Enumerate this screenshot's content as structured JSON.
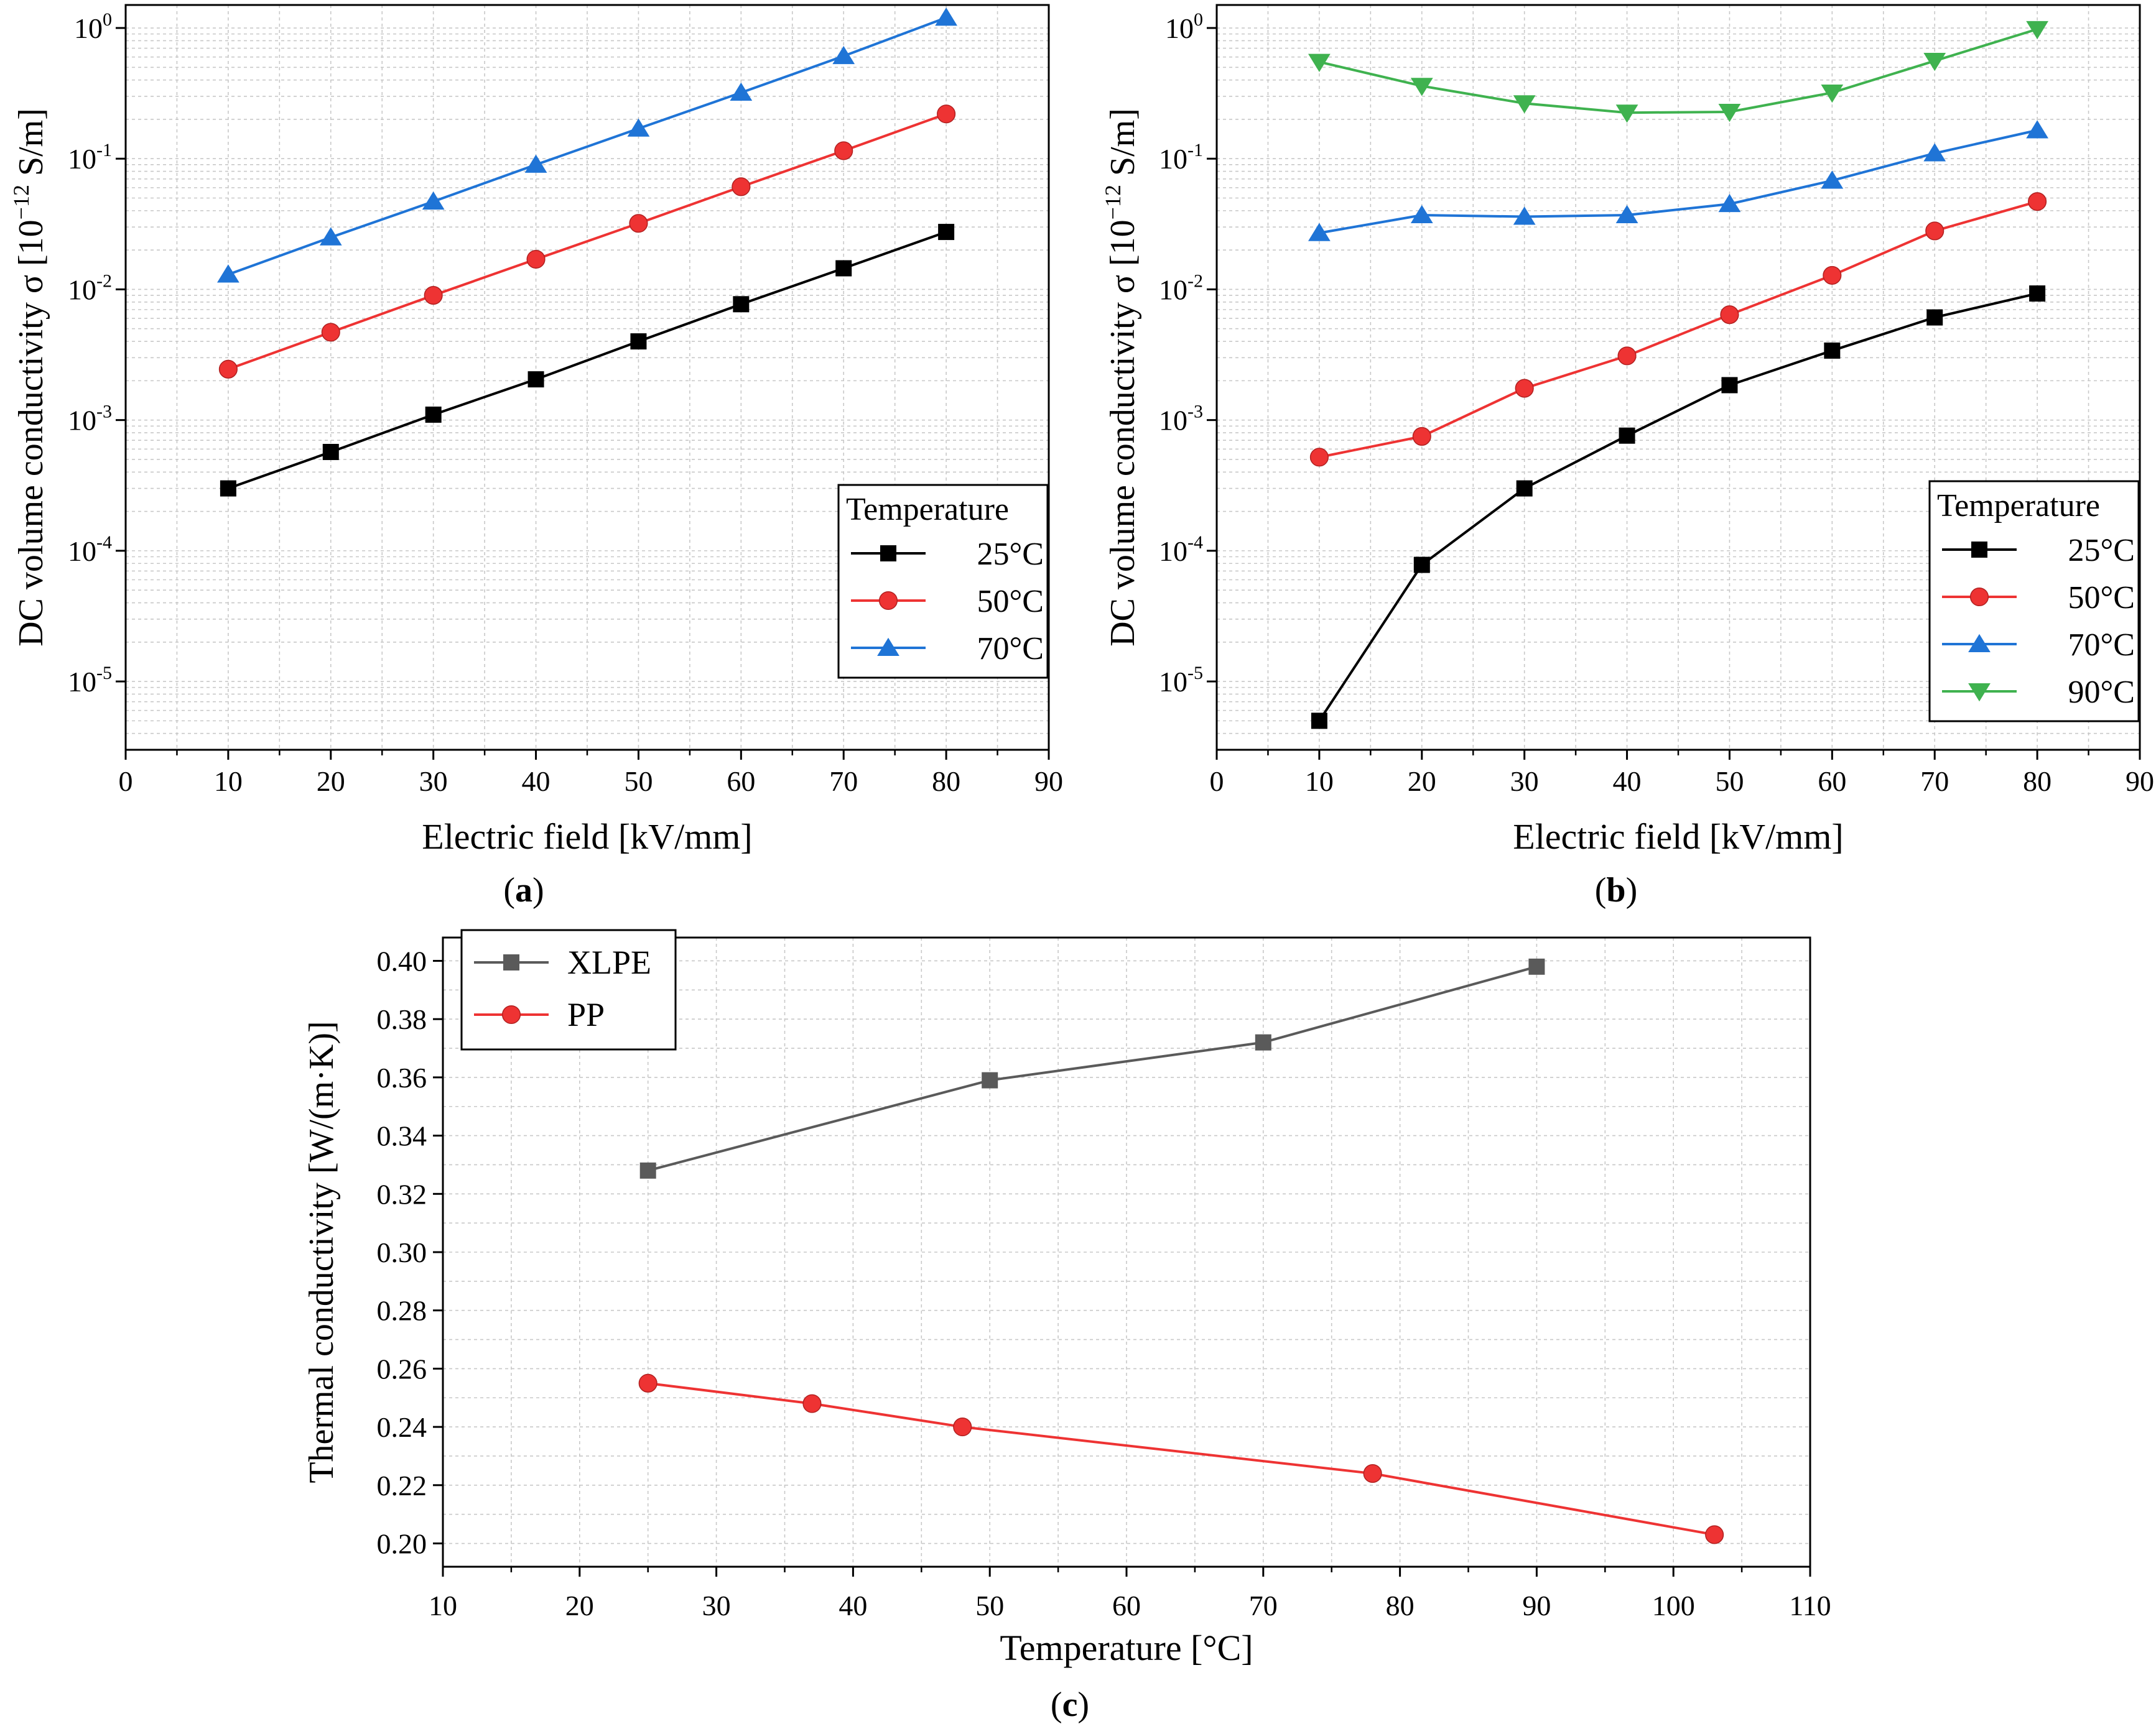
{
  "colors": {
    "black": "#000000",
    "red": "#ee3333",
    "blue": "#1f74d6",
    "green": "#3fb24f",
    "grey": "#5a5a5a",
    "grid": "#c8c8c8"
  },
  "chart_data": [
    {
      "id": "a",
      "type": "line",
      "panel_label": "a",
      "yscale": "log",
      "xlabel": "Electric field [kV/mm]",
      "ylabel": "DC volume conductivity σ [10",
      "ylabel_exp": "−12",
      "ylabel_unit": " S/m]",
      "xlim": [
        0,
        90
      ],
      "ylim": [
        3e-06,
        1.5
      ],
      "xticks": [
        "0",
        "10",
        "20",
        "30",
        "40",
        "50",
        "60",
        "70",
        "80",
        "90"
      ],
      "ytick_base": "10",
      "yticks": [
        "-5",
        "-4",
        "-3",
        "-2",
        "-1",
        "0"
      ],
      "legend_title": "Temperature",
      "legend_position": "lower-right",
      "series": [
        {
          "name": "25°C",
          "marker": "square",
          "color": "#000000",
          "x": [
            10,
            20,
            30,
            40,
            50,
            60,
            70,
            80
          ],
          "y": [
            0.0003,
            0.00057,
            0.0011,
            0.00205,
            0.004,
            0.0077,
            0.0145,
            0.0275
          ]
        },
        {
          "name": "50°C",
          "marker": "circle",
          "color": "#ee3333",
          "x": [
            10,
            20,
            30,
            40,
            50,
            60,
            70,
            80
          ],
          "y": [
            0.00245,
            0.0047,
            0.009,
            0.017,
            0.032,
            0.061,
            0.115,
            0.22
          ]
        },
        {
          "name": "70°C",
          "marker": "triangle-up",
          "color": "#1f74d6",
          "x": [
            10,
            20,
            30,
            40,
            50,
            60,
            70,
            80
          ],
          "y": [
            0.013,
            0.025,
            0.047,
            0.09,
            0.17,
            0.32,
            0.61,
            1.2
          ]
        }
      ]
    },
    {
      "id": "b",
      "type": "line",
      "panel_label": "b",
      "yscale": "log",
      "xlabel": "Electric field [kV/mm]",
      "ylabel": "DC volume conductivity σ [10",
      "ylabel_exp": "−12",
      "ylabel_unit": " S/m]",
      "xlim": [
        0,
        90
      ],
      "ylim": [
        3e-06,
        1.5
      ],
      "xticks": [
        "0",
        "10",
        "20",
        "30",
        "40",
        "50",
        "60",
        "70",
        "80",
        "90"
      ],
      "ytick_base": "10",
      "yticks": [
        "-5",
        "-4",
        "-3",
        "-2",
        "-1",
        "0"
      ],
      "legend_title": "Temperature",
      "legend_position": "lower-right",
      "series": [
        {
          "name": "25°C",
          "marker": "square",
          "color": "#000000",
          "x": [
            10,
            20,
            30,
            40,
            50,
            60,
            70,
            80
          ],
          "y": [
            5e-06,
            7.8e-05,
            0.0003,
            0.00076,
            0.00185,
            0.0034,
            0.0061,
            0.0093
          ]
        },
        {
          "name": "50°C",
          "marker": "circle",
          "color": "#ee3333",
          "x": [
            10,
            20,
            30,
            40,
            50,
            60,
            70,
            80
          ],
          "y": [
            0.00052,
            0.00075,
            0.00175,
            0.0031,
            0.0064,
            0.0128,
            0.028,
            0.047
          ]
        },
        {
          "name": "70°C",
          "marker": "triangle-up",
          "color": "#1f74d6",
          "x": [
            10,
            20,
            30,
            40,
            50,
            60,
            70,
            80
          ],
          "y": [
            0.027,
            0.037,
            0.036,
            0.037,
            0.045,
            0.068,
            0.11,
            0.165
          ]
        },
        {
          "name": "90°C",
          "marker": "triangle-down",
          "color": "#3fb24f",
          "x": [
            10,
            20,
            30,
            40,
            50,
            60,
            70,
            80
          ],
          "y": [
            0.55,
            0.36,
            0.265,
            0.225,
            0.228,
            0.32,
            0.56,
            0.98
          ]
        }
      ]
    },
    {
      "id": "c",
      "type": "line",
      "panel_label": "c",
      "yscale": "linear",
      "xlabel": "Temperature [°C]",
      "ylabel": "Thermal conductivity [W/(m·K)]",
      "xlim": [
        10,
        110
      ],
      "ylim": [
        0.192,
        0.408
      ],
      "xticks": [
        "10",
        "20",
        "30",
        "40",
        "50",
        "60",
        "70",
        "80",
        "90",
        "100",
        "110"
      ],
      "yticks": [
        "0.20",
        "0.22",
        "0.24",
        "0.26",
        "0.28",
        "0.30",
        "0.32",
        "0.34",
        "0.36",
        "0.38",
        "0.40"
      ],
      "legend_position": "top-left",
      "series": [
        {
          "name": "XLPE",
          "marker": "square",
          "color": "#5a5a5a",
          "x": [
            25,
            50,
            70,
            90
          ],
          "y": [
            0.328,
            0.359,
            0.372,
            0.398
          ]
        },
        {
          "name": "PP",
          "marker": "circle",
          "color": "#ee3333",
          "x": [
            25,
            37,
            48,
            78,
            103
          ],
          "y": [
            0.255,
            0.248,
            0.24,
            0.224,
            0.203
          ]
        }
      ]
    }
  ]
}
